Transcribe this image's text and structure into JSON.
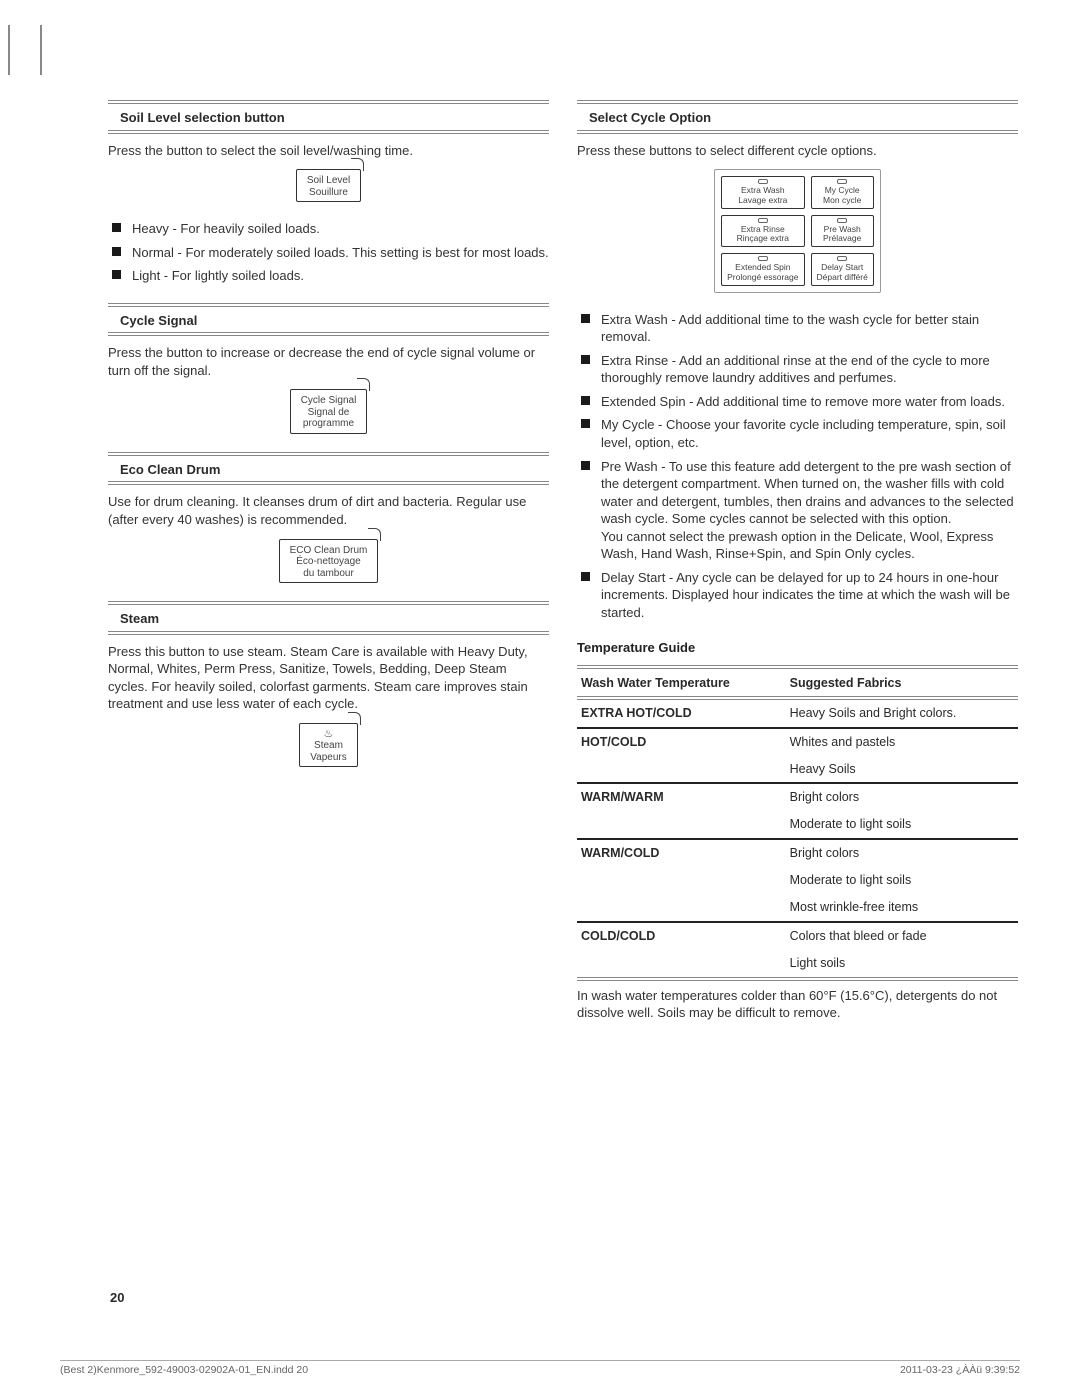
{
  "page_number": "20",
  "footer_left": "(Best 2)Kenmore_592-49003-02902A-01_EN.indd   20",
  "footer_right": "2011-03-23   ¿ÀÀü 9:39:52",
  "left": {
    "soil": {
      "title": "Soil Level selection button",
      "intro": "Press the button to select the soil level/washing time.",
      "ill_line1": "Soil Level",
      "ill_line2": "Souillure",
      "items": [
        "Heavy - For heavily soiled loads.",
        "Normal - For moderately soiled loads. This setting is best for most loads.",
        "Light - For lightly soiled loads."
      ]
    },
    "cycle": {
      "title": "Cycle Signal",
      "intro": "Press the button to increase or decrease the end of cycle signal volume or turn off the signal.",
      "ill_line1": "Cycle Signal",
      "ill_line2": "Signal de",
      "ill_line3": "programme"
    },
    "eco": {
      "title": "Eco Clean Drum",
      "intro": "Use for drum cleaning. It cleanses drum of dirt and bacteria. Regular use (after every 40 washes) is recommended.",
      "ill_line1": "ECO Clean Drum",
      "ill_line2": "Éco-nettoyage",
      "ill_line3": "du tambour"
    },
    "steam": {
      "title": "Steam",
      "intro": "Press this button to use steam. Steam Care is available with Heavy Duty, Normal, Whites, Perm Press, Sanitize, Towels, Bedding, Deep Steam cycles. For heavily soiled, colorfast garments. Steam care improves stain treatment and use less water of each cycle.",
      "ill_line1": "Steam",
      "ill_line2": "Vapeurs"
    }
  },
  "right": {
    "select": {
      "title": "Select Cycle Option",
      "intro": "Press these buttons to select different cycle options.",
      "btns": [
        {
          "l1": "Extra Wash",
          "l2": "Lavage extra"
        },
        {
          "l1": "My Cycle",
          "l2": "Mon cycle"
        },
        {
          "l1": "Extra Rinse",
          "l2": "Rinçage extra"
        },
        {
          "l1": "Pre Wash",
          "l2": "Prélavage"
        },
        {
          "l1": "Extended Spin",
          "l2": "Prolongé essorage"
        },
        {
          "l1": "Delay Start",
          "l2": "Départ différé"
        }
      ],
      "items": [
        "Extra Wash - Add additional time to the wash cycle for better stain removal.",
        "Extra Rinse - Add an additional rinse at the end of the cycle to more thoroughly remove laundry additives and perfumes.",
        "Extended Spin - Add additional time to remove more water from loads.",
        "My Cycle - Choose your favorite cycle including temperature, spin, soil level, option, etc.",
        "Pre Wash - To use this feature add detergent to the pre wash section of the detergent compartment. When turned on, the washer fills with cold water and detergent, tumbles, then drains and advances to the selected wash cycle. Some cycles cannot be selected with this option.\nYou cannot select the prewash option in the Delicate, Wool, Express Wash, Hand Wash, Rinse+Spin, and Spin Only cycles.",
        "Delay Start - Any cycle can be delayed for up to 24 hours in one-hour increments. Displayed hour indicates the time at which the wash will be started."
      ]
    },
    "temp": {
      "title": "Temperature Guide",
      "col1": "Wash Water Temperature",
      "col2": "Suggested Fabrics",
      "rows": [
        {
          "t": "EXTRA HOT/COLD",
          "f": [
            "Heavy Soils and Bright colors."
          ]
        },
        {
          "t": "HOT/COLD",
          "f": [
            "Whites and pastels",
            "Heavy Soils"
          ]
        },
        {
          "t": "WARM/WARM",
          "f": [
            "Bright colors",
            "Moderate to light soils"
          ]
        },
        {
          "t": "WARM/COLD",
          "f": [
            "Bright colors",
            "Moderate to light soils",
            "Most wrinkle-free items"
          ]
        },
        {
          "t": "COLD/COLD",
          "f": [
            "Colors that bleed or fade",
            "Light soils"
          ]
        }
      ],
      "note": "In wash water temperatures colder than 60°F (15.6°C), detergents do not dissolve well. Soils may be difficult to remove."
    }
  }
}
